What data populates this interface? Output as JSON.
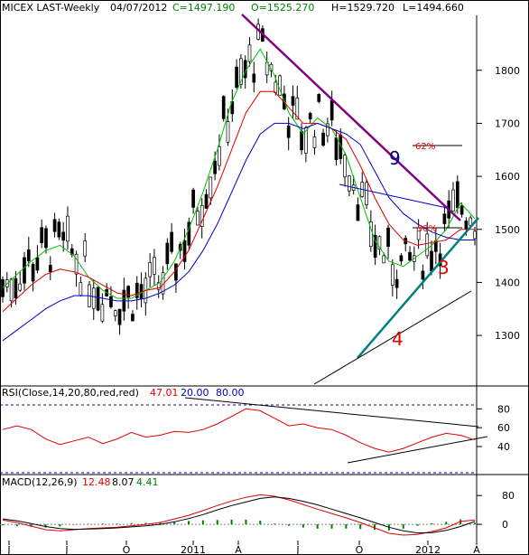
{
  "header": {
    "symbol": "MICEX LAST-Weekly",
    "date": "04/07/2012",
    "close": "C=1497.190",
    "open": "O=1525.270",
    "high": "H=1529.720",
    "low": "L=1494.660"
  },
  "chart_data": [
    {
      "type": "candlestick",
      "title": "MICEX LAST-Weekly",
      "ylim": [
        1220,
        1890
      ],
      "y_ticks": [
        "1800",
        "1700",
        "1600",
        "1500",
        "1400",
        "1300"
      ],
      "x_ticks": [
        "J",
        "J",
        "O",
        "2011",
        "A",
        "J",
        "O",
        "2012",
        "A"
      ],
      "moving_averages": [
        {
          "color": "#00c000",
          "values": [
            1390,
            1415,
            1440,
            1460,
            1470,
            1450,
            1410,
            1385,
            1370,
            1370,
            1385,
            1400,
            1440,
            1500,
            1570,
            1650,
            1740,
            1800,
            1840,
            1790,
            1720,
            1680,
            1710,
            1690,
            1640,
            1560,
            1480,
            1440,
            1430,
            1450,
            1470,
            1500,
            1550,
            1520
          ]
        },
        {
          "color": "#e00000",
          "values": [
            1345,
            1370,
            1395,
            1415,
            1425,
            1420,
            1410,
            1395,
            1380,
            1375,
            1385,
            1390,
            1420,
            1460,
            1520,
            1580,
            1650,
            1720,
            1760,
            1760,
            1730,
            1700,
            1700,
            1690,
            1670,
            1620,
            1560,
            1510,
            1480,
            1470,
            1475,
            1480,
            1500,
            1500
          ]
        },
        {
          "color": "#0000c0",
          "values": [
            1290,
            1310,
            1330,
            1350,
            1365,
            1375,
            1375,
            1370,
            1365,
            1365,
            1370,
            1380,
            1395,
            1420,
            1460,
            1510,
            1570,
            1630,
            1680,
            1700,
            1700,
            1690,
            1700,
            1690,
            1680,
            1660,
            1610,
            1560,
            1530,
            1510,
            1495,
            1485,
            1480,
            1480
          ]
        }
      ],
      "annotations": [
        "9",
        "3",
        "4",
        "62%",
        "50%"
      ]
    },
    {
      "type": "line",
      "title": "RSI(Close,14,20,80,red,red)",
      "legend_values": [
        "47.01",
        "20.00",
        "80.00"
      ],
      "ylim": [
        15,
        88
      ],
      "y_ticks": [
        "80",
        "60",
        "40"
      ],
      "series": [
        {
          "name": "RSI",
          "color": "#e00000",
          "values": [
            58,
            62,
            58,
            48,
            42,
            46,
            50,
            43,
            48,
            55,
            50,
            52,
            56,
            55,
            58,
            64,
            72,
            80,
            78,
            70,
            62,
            64,
            60,
            58,
            52,
            44,
            38,
            34,
            38,
            44,
            50,
            54,
            52,
            47
          ]
        }
      ]
    },
    {
      "type": "line",
      "title": "MACD(12,26,9)",
      "legend_values": [
        "12.48",
        "8.07",
        "4.41"
      ],
      "ylim": [
        -40,
        88
      ],
      "y_ticks": [
        "80",
        "0"
      ],
      "series": [
        {
          "name": "MACD",
          "color": "#e00000",
          "values": [
            12,
            5,
            -5,
            -15,
            -18,
            -15,
            -12,
            -10,
            -8,
            -4,
            0,
            5,
            15,
            25,
            38,
            52,
            65,
            75,
            82,
            78,
            68,
            55,
            42,
            30,
            18,
            5,
            -10,
            -25,
            -30,
            -28,
            -20,
            -10,
            8,
            12
          ]
        },
        {
          "name": "Signal",
          "color": "#000000",
          "values": [
            15,
            10,
            2,
            -6,
            -12,
            -14,
            -13,
            -12,
            -10,
            -7,
            -4,
            0,
            7,
            16,
            27,
            40,
            52,
            62,
            72,
            76,
            72,
            64,
            54,
            42,
            30,
            18,
            5,
            -8,
            -18,
            -24,
            -23,
            -17,
            -6,
            8
          ]
        }
      ],
      "histogram": {
        "name": "Histogram",
        "color": "#008000",
        "values": [
          -3,
          -5,
          -7,
          -9,
          -6,
          -1,
          1,
          2,
          2,
          3,
          4,
          5,
          8,
          9,
          11,
          12,
          13,
          13,
          10,
          2,
          -4,
          -9,
          -12,
          -12,
          -12,
          -13,
          -15,
          -17,
          -12,
          -4,
          3,
          7,
          14,
          4
        ]
      }
    }
  ]
}
